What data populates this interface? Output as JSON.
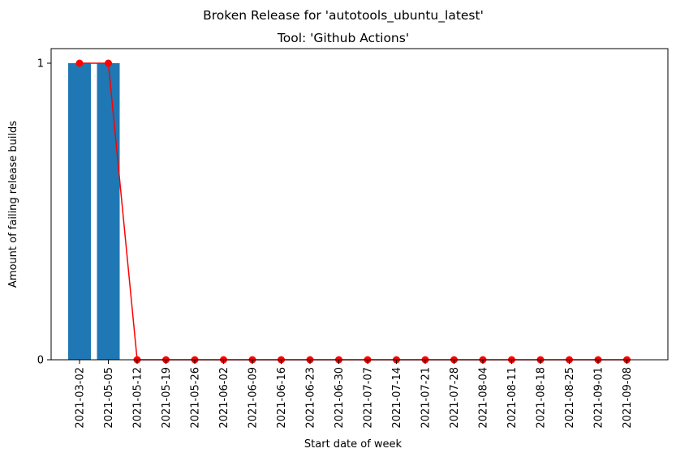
{
  "chart_data": {
    "type": "bar",
    "title": "Broken Release for 'autotools_ubuntu_latest'",
    "subtitle": "Tool: 'Github Actions'",
    "xlabel": "Start date of week",
    "ylabel": "Amount of failing release builds",
    "categories": [
      "2021-03-02",
      "2021-05-05",
      "2021-05-12",
      "2021-05-19",
      "2021-05-26",
      "2021-06-02",
      "2021-06-09",
      "2021-06-16",
      "2021-06-23",
      "2021-06-30",
      "2021-07-07",
      "2021-07-14",
      "2021-07-21",
      "2021-07-28",
      "2021-08-04",
      "2021-08-11",
      "2021-08-18",
      "2021-08-25",
      "2021-09-01",
      "2021-09-08"
    ],
    "series": [
      {
        "kind": "bar",
        "color": "#1f77b4",
        "values": [
          1,
          1,
          0,
          0,
          0,
          0,
          0,
          0,
          0,
          0,
          0,
          0,
          0,
          0,
          0,
          0,
          0,
          0,
          0,
          0
        ]
      },
      {
        "kind": "line",
        "color": "#ff0000",
        "marker": "circle",
        "values": [
          1,
          1,
          0,
          0,
          0,
          0,
          0,
          0,
          0,
          0,
          0,
          0,
          0,
          0,
          0,
          0,
          0,
          0,
          0,
          0
        ]
      }
    ],
    "yticks": [
      "0",
      "1"
    ],
    "ylim": [
      0,
      1
    ],
    "grid": false,
    "legend": "none"
  }
}
